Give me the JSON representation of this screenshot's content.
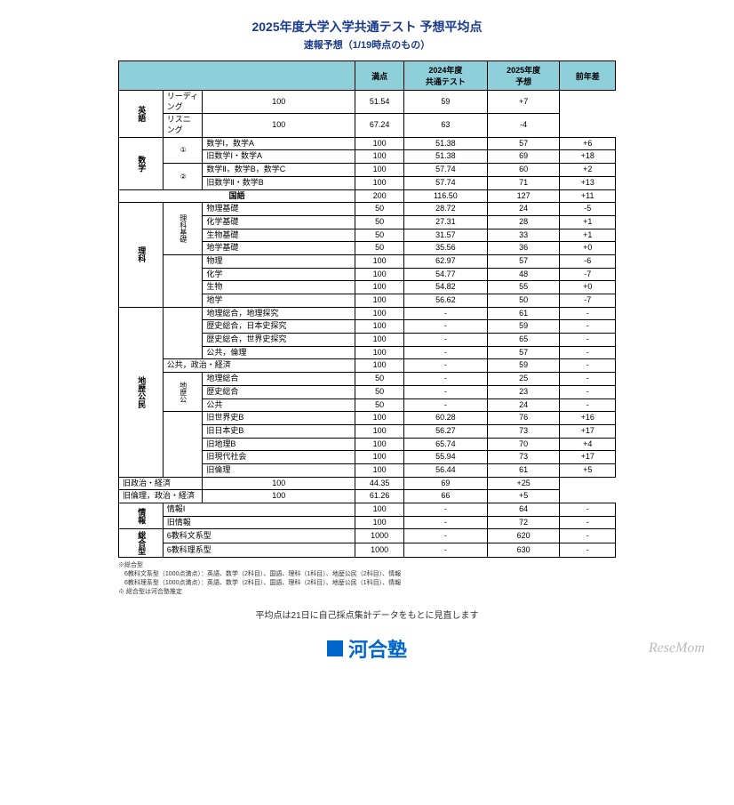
{
  "title": "2025年度大学入学共通テスト 予想平均点",
  "subtitle": "速報予想（1/19時点のもの）",
  "headers": {
    "full": "満点",
    "y2024": "2024年度\n共通テスト",
    "y2025": "2025年度\n予想",
    "diff": "前年差"
  },
  "rows": [
    {
      "cat": "英語",
      "catRows": 2,
      "sub": "",
      "subRows": 0,
      "subject": "リーディング",
      "full": "100",
      "y24": "51.54",
      "y25": "59",
      "diff": "+7"
    },
    {
      "subject": "リスニング",
      "full": "100",
      "y24": "67.24",
      "y25": "63",
      "diff": "-4"
    },
    {
      "cat": "数学",
      "catRows": 4,
      "sub": "①",
      "subRows": 2,
      "subject": "数学Ⅰ，数学A",
      "full": "100",
      "y24": "51.38",
      "y25": "57",
      "diff": "+6"
    },
    {
      "subject": "旧数学Ⅰ・数学A",
      "full": "100",
      "y24": "51.38",
      "y25": "69",
      "diff": "+18"
    },
    {
      "sub": "②",
      "subRows": 2,
      "subject": "数学Ⅱ，数学B，数学C",
      "full": "100",
      "y24": "57.74",
      "y25": "60",
      "diff": "+2"
    },
    {
      "subject": "旧数学Ⅱ・数学B",
      "full": "100",
      "y24": "57.74",
      "y25": "71",
      "diff": "+13"
    },
    {
      "cat": "",
      "catRows": 1,
      "sub": "",
      "subRows": 0,
      "colspan": 3,
      "subject": "国語",
      "full": "200",
      "y24": "116.50",
      "y25": "127",
      "diff": "+11"
    },
    {
      "cat": "理科",
      "catRows": 8,
      "sub": "理科基礎",
      "subRows": 4,
      "subject": "物理基礎",
      "full": "50",
      "y24": "28.72",
      "y25": "24",
      "diff": "-5"
    },
    {
      "subject": "化学基礎",
      "full": "50",
      "y24": "27.31",
      "y25": "28",
      "diff": "+1"
    },
    {
      "subject": "生物基礎",
      "full": "50",
      "y24": "31.57",
      "y25": "33",
      "diff": "+1"
    },
    {
      "subject": "地学基礎",
      "full": "50",
      "y24": "35.56",
      "y25": "36",
      "diff": "+0"
    },
    {
      "sub": "",
      "subRows": 4,
      "subject": "物理",
      "full": "100",
      "y24": "62.97",
      "y25": "57",
      "diff": "-6"
    },
    {
      "subject": "化学",
      "full": "100",
      "y24": "54.77",
      "y25": "48",
      "diff": "-7"
    },
    {
      "subject": "生物",
      "full": "100",
      "y24": "54.82",
      "y25": "55",
      "diff": "+0"
    },
    {
      "subject": "地学",
      "full": "100",
      "y24": "56.62",
      "y25": "50",
      "diff": "-7"
    },
    {
      "cat": "地歴公民",
      "catRows": 13,
      "sub": "",
      "subRows": 4,
      "subject": "地理総合，地理探究",
      "full": "100",
      "y24": "-",
      "y25": "61",
      "diff": "-"
    },
    {
      "subject": "歴史総合，日本史探究",
      "full": "100",
      "y24": "-",
      "y25": "59",
      "diff": "-"
    },
    {
      "subject": "歴史総合，世界史探究",
      "full": "100",
      "y24": "-",
      "y25": "65",
      "diff": "-"
    },
    {
      "subject": "公共，倫理",
      "full": "100",
      "y24": "-",
      "y25": "57",
      "diff": "-"
    },
    {
      "sub": "",
      "subRows": 0,
      "colspan": 2,
      "subject": "公共，政治・経済",
      "full": "100",
      "y24": "-",
      "y25": "59",
      "diff": "-"
    },
    {
      "sub": "地歴公",
      "subRows": 3,
      "subject": "地理総合",
      "full": "50",
      "y24": "-",
      "y25": "25",
      "diff": "-"
    },
    {
      "subject": "歴史総合",
      "full": "50",
      "y24": "-",
      "y25": "23",
      "diff": "-"
    },
    {
      "subject": "公共",
      "full": "50",
      "y24": "-",
      "y25": "24",
      "diff": "-"
    },
    {
      "sub": "",
      "subRows": 5,
      "subject": "旧世界史B",
      "full": "100",
      "y24": "60.28",
      "y25": "76",
      "diff": "+16"
    },
    {
      "subject": "旧日本史B",
      "full": "100",
      "y24": "56.27",
      "y25": "73",
      "diff": "+17"
    },
    {
      "subject": "旧地理B",
      "full": "100",
      "y24": "65.74",
      "y25": "70",
      "diff": "+4"
    },
    {
      "subject": "旧現代社会",
      "full": "100",
      "y24": "55.94",
      "y25": "73",
      "diff": "+17"
    },
    {
      "subject": "旧倫理",
      "full": "100",
      "y24": "56.44",
      "y25": "61",
      "diff": "+5"
    },
    {
      "sub": "",
      "subRows": 0,
      "colspan": 2,
      "subject": "旧政治・経済",
      "full": "100",
      "y24": "44.35",
      "y25": "69",
      "diff": "+25"
    },
    {
      "sub": "",
      "subRows": 0,
      "colspan": 2,
      "subject": "旧倫理，政治・経済",
      "full": "100",
      "y24": "61.26",
      "y25": "66",
      "diff": "+5"
    },
    {
      "cat": "情報",
      "catRows": 2,
      "sub": "",
      "subRows": 0,
      "colspan": 2,
      "subject": "情報Ⅰ",
      "full": "100",
      "y24": "-",
      "y25": "64",
      "diff": "-"
    },
    {
      "sub": "",
      "subRows": 0,
      "colspan": 2,
      "subject": "旧情報",
      "full": "100",
      "y24": "-",
      "y25": "72",
      "diff": "-"
    },
    {
      "cat": "総合型",
      "catRows": 2,
      "sub": "",
      "subRows": 0,
      "colspan": 2,
      "subject": "6教科文系型",
      "full": "1000",
      "y24": "-",
      "y25": "620",
      "diff": "-"
    },
    {
      "sub": "",
      "subRows": 0,
      "colspan": 2,
      "subject": "6教科理系型",
      "full": "1000",
      "y24": "-",
      "y25": "630",
      "diff": "-"
    }
  ],
  "notes": [
    "※総合型",
    "　6教科文系型（1000点満点）：英語、数学（2科目）、国語、理科（1科目）、地歴公民（2科目）、情報",
    "　6教科理系型（1000点満点）：英語、数学（2科目）、国語、理科（2科目）、地歴公民（1科目）、情報",
    "※ 総合型は河合塾推定"
  ],
  "footerNote": "平均点は21日に自己採点集計データをもとに見直します",
  "logoMain": "河合塾",
  "logoRight": "ReseMom"
}
